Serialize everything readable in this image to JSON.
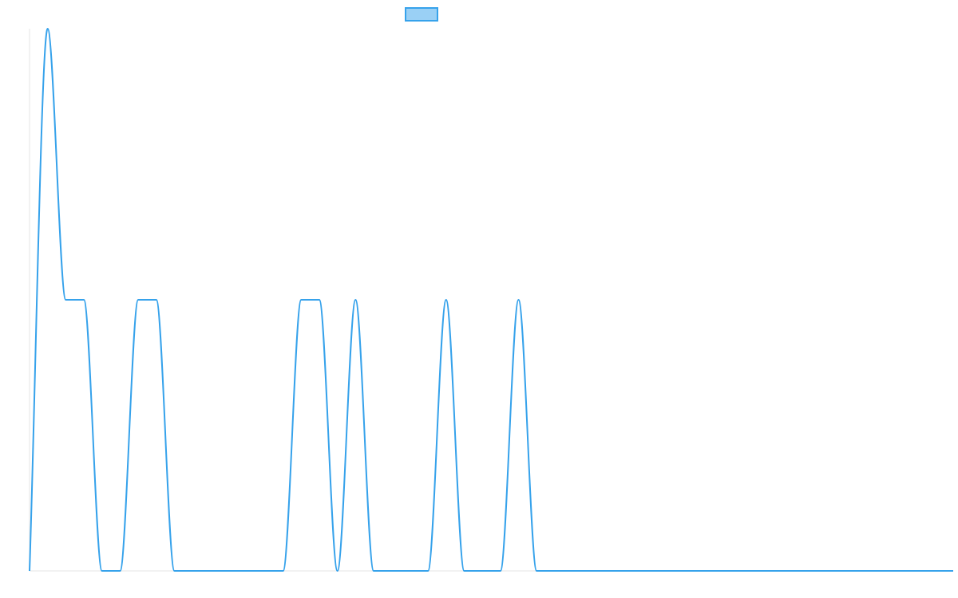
{
  "chart_data": {
    "type": "line",
    "title": "",
    "xlabel": "",
    "ylabel": "",
    "grid": false,
    "legend": {
      "placement": "top-center",
      "series_label": "",
      "fill_color": "#9ad0f5",
      "stroke_color": "#36a2eb"
    },
    "colors": {
      "line": "#36a2eb",
      "axis": "#e6e6e6"
    },
    "xlim": [
      0,
      51
    ],
    "ylim": [
      0,
      2
    ],
    "series": [
      {
        "x": [
          0,
          1,
          2,
          3,
          4,
          5,
          6,
          7,
          8,
          9,
          10,
          11,
          12,
          13,
          14,
          15,
          16,
          17,
          18,
          19,
          20,
          21,
          22,
          23,
          24,
          25,
          26,
          27,
          28,
          29,
          30,
          31,
          32,
          33,
          34,
          35,
          36,
          37,
          38,
          39,
          40,
          41,
          42,
          43,
          44,
          45,
          46,
          47,
          48,
          49,
          50,
          51
        ],
        "values": [
          0,
          2,
          1,
          1,
          0,
          0,
          1,
          1,
          0,
          0,
          0,
          0,
          0,
          0,
          0,
          1,
          1,
          0,
          1,
          0,
          0,
          0,
          0,
          1,
          0,
          0,
          0,
          1,
          0,
          0,
          0,
          0,
          0,
          0,
          0,
          0,
          0,
          0,
          0,
          0,
          0,
          0,
          0,
          0,
          0,
          0,
          0,
          0,
          0,
          0,
          0,
          0
        ]
      }
    ]
  }
}
